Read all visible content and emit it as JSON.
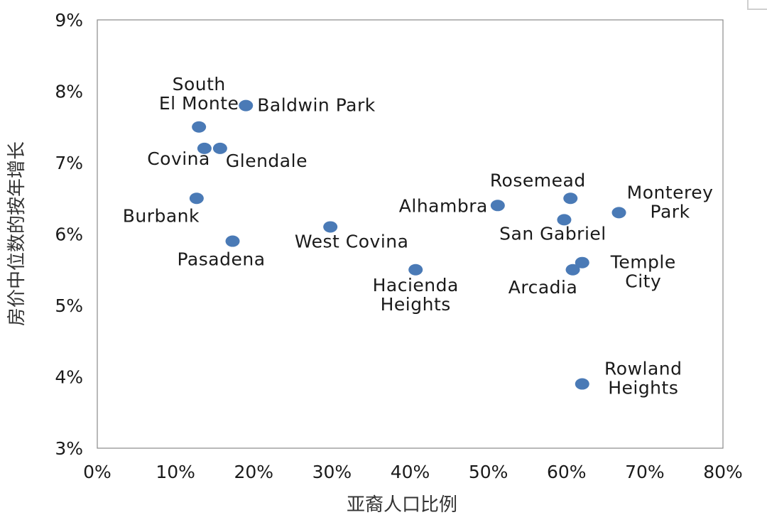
{
  "chart_data": {
    "type": "scatter",
    "title": "",
    "xlabel": "亚裔人口比例",
    "ylabel": "房价中位数的按年增长",
    "xlim": [
      0,
      80
    ],
    "ylim": [
      3,
      9
    ],
    "x_ticks": [
      "0%",
      "10%",
      "20%",
      "30%",
      "40%",
      "50%",
      "60%",
      "70%",
      "80%"
    ],
    "y_ticks": [
      "3%",
      "4%",
      "5%",
      "6%",
      "7%",
      "8%",
      "9%"
    ],
    "grid": false,
    "legend": "none",
    "marker_color": "#4a7ab6",
    "points": [
      {
        "label": "South El Monte",
        "lines": [
          "South",
          "El Monte"
        ],
        "x": 13.0,
        "y": 7.5
      },
      {
        "label": "Baldwin Park",
        "lines": [
          "Baldwin Park"
        ],
        "x": 19.0,
        "y": 7.8
      },
      {
        "label": "Covina",
        "lines": [
          "Covina"
        ],
        "x": 13.7,
        "y": 7.2
      },
      {
        "label": "Glendale",
        "lines": [
          "Glendale"
        ],
        "x": 15.7,
        "y": 7.2
      },
      {
        "label": "Burbank",
        "lines": [
          "Burbank"
        ],
        "x": 12.7,
        "y": 6.5
      },
      {
        "label": "Pasadena",
        "lines": [
          "Pasadena"
        ],
        "x": 17.3,
        "y": 5.9
      },
      {
        "label": "West Covina",
        "lines": [
          "West Covina"
        ],
        "x": 29.8,
        "y": 6.1
      },
      {
        "label": "Hacienda Heights",
        "lines": [
          "Hacienda",
          "Heights"
        ],
        "x": 40.7,
        "y": 5.5
      },
      {
        "label": "Alhambra",
        "lines": [
          "Alhambra"
        ],
        "x": 51.2,
        "y": 6.4
      },
      {
        "label": "Rosemead",
        "lines": [
          "Rosemead"
        ],
        "x": 60.5,
        "y": 6.5
      },
      {
        "label": "San Gabriel",
        "lines": [
          "San Gabriel"
        ],
        "x": 59.7,
        "y": 6.2
      },
      {
        "label": "Monterey Park",
        "lines": [
          "Monterey",
          "Park"
        ],
        "x": 66.7,
        "y": 6.3
      },
      {
        "label": "Temple City",
        "lines": [
          "Temple",
          "City"
        ],
        "x": 62.0,
        "y": 5.6
      },
      {
        "label": "Arcadia",
        "lines": [
          "Arcadia"
        ],
        "x": 60.8,
        "y": 5.5
      },
      {
        "label": "Rowland Heights",
        "lines": [
          "Rowland",
          "Heights"
        ],
        "x": 62.0,
        "y": 3.9
      }
    ]
  }
}
